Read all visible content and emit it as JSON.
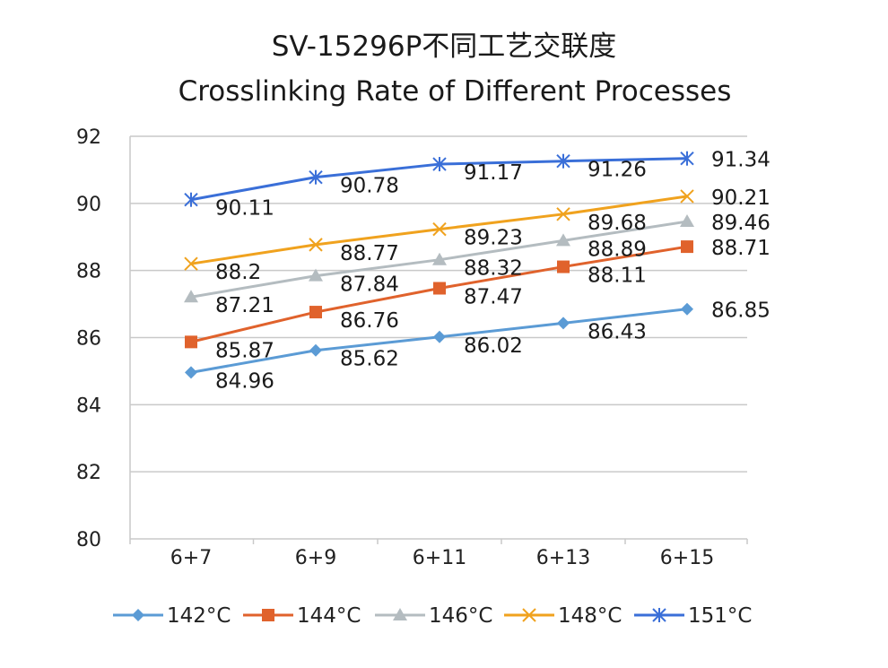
{
  "chart_data": {
    "type": "line",
    "title": "SV-15296P不同工艺交联度",
    "subtitle": "Crosslinking Rate of Different Processes",
    "xlabel": "",
    "ylabel": "",
    "categories": [
      "6+7",
      "6+9",
      "6+11",
      "6+13",
      "6+15"
    ],
    "ylim": [
      80,
      92
    ],
    "yticks": [
      "80",
      "82",
      "84",
      "86",
      "88",
      "90",
      "92"
    ],
    "grid": "horizontal",
    "legend_position": "bottom",
    "series": [
      {
        "name": "142°C",
        "color": "#5B9BD5",
        "marker": "diamond",
        "values": [
          84.96,
          85.62,
          86.02,
          86.43,
          86.85
        ],
        "labels": [
          "84.96",
          "85.62",
          "86.02",
          "86.43",
          "86.85"
        ]
      },
      {
        "name": "144°C",
        "color": "#E0622C",
        "marker": "square",
        "values": [
          85.87,
          86.76,
          87.47,
          88.11,
          88.71
        ],
        "labels": [
          "85.87",
          "86.76",
          "87.47",
          "88.11",
          "88.71"
        ]
      },
      {
        "name": "146°C",
        "color": "#B4BCC0",
        "marker": "triangle",
        "values": [
          87.21,
          87.84,
          88.32,
          88.89,
          89.46
        ],
        "labels": [
          "87.21",
          "87.84",
          "88.32",
          "88.89",
          "89.46"
        ]
      },
      {
        "name": "148°C",
        "color": "#F0A21E",
        "marker": "x",
        "values": [
          88.2,
          88.77,
          89.23,
          89.68,
          90.21
        ],
        "labels": [
          "88.2",
          "88.77",
          "89.23",
          "89.68",
          "90.21"
        ]
      },
      {
        "name": "151°C",
        "color": "#3A6FD8",
        "marker": "star",
        "values": [
          90.11,
          90.78,
          91.17,
          91.26,
          91.34
        ],
        "labels": [
          "90.11",
          "90.78",
          "91.17",
          "91.26",
          "91.34"
        ]
      }
    ]
  }
}
